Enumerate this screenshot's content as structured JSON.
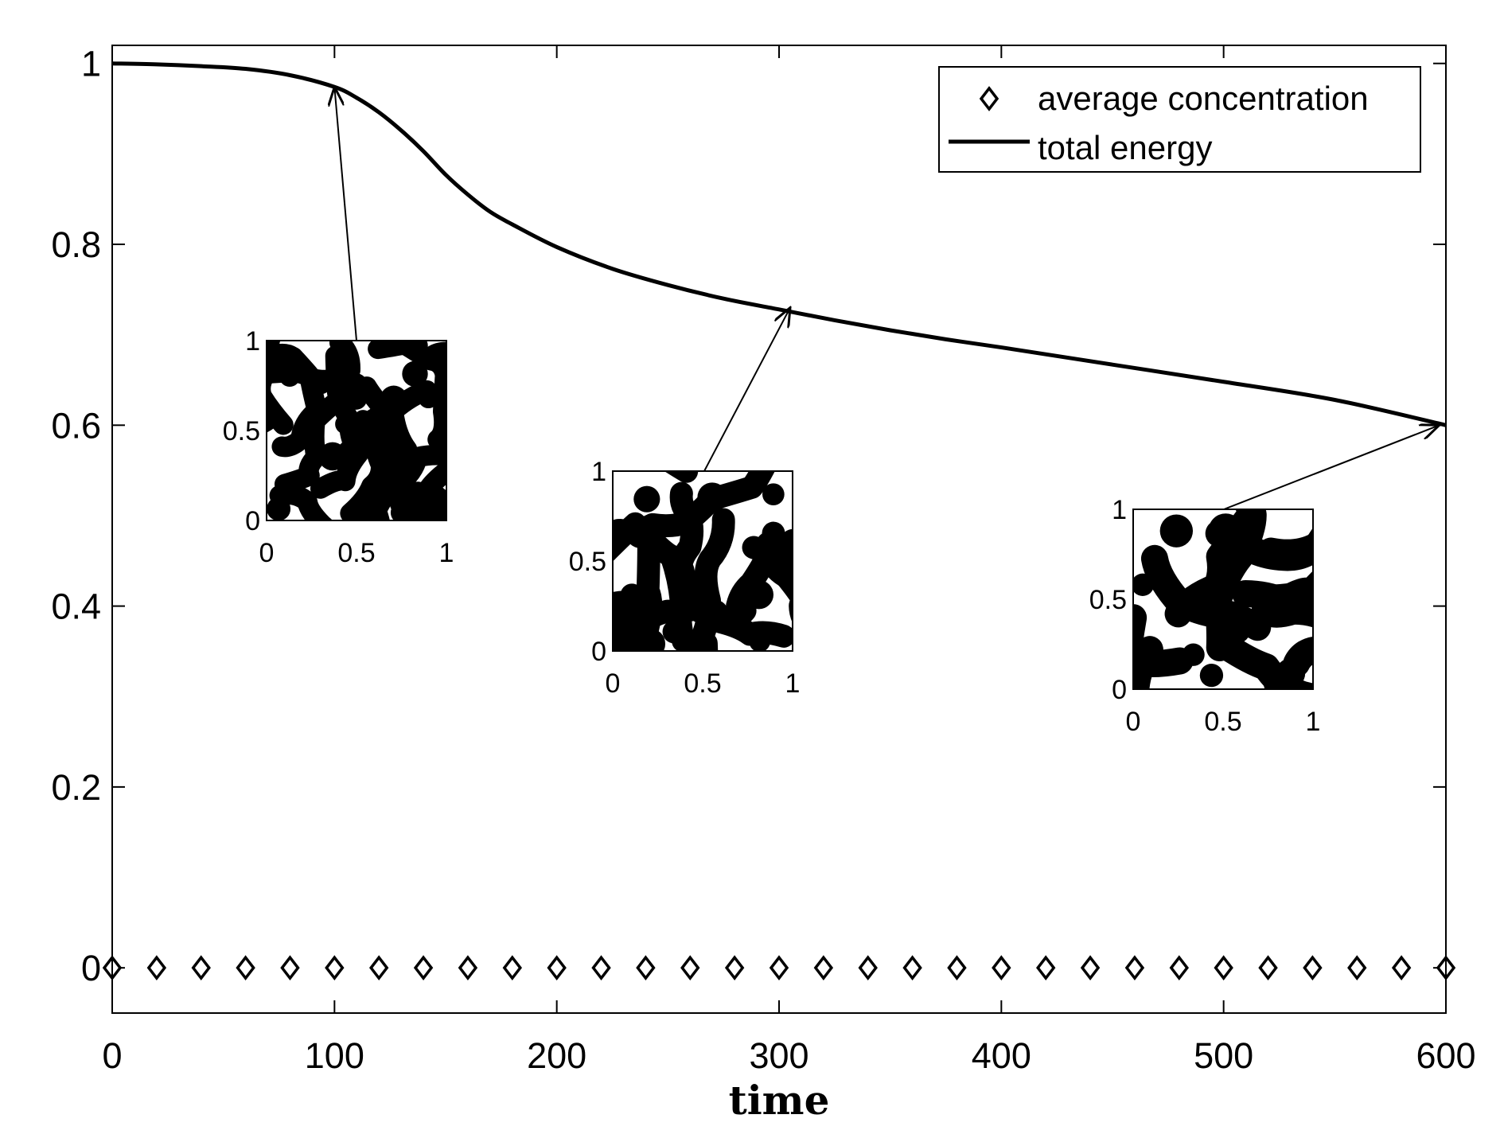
{
  "chart_data": {
    "type": "line",
    "title": "",
    "xlabel": "time",
    "ylabel": "",
    "xlim": [
      0,
      600
    ],
    "ylim": [
      -0.05,
      1.02
    ],
    "x_ticks": [
      0,
      100,
      200,
      300,
      400,
      500,
      600
    ],
    "x_tick_labels": [
      "0",
      "100",
      "200",
      "300",
      "400",
      "500",
      "600"
    ],
    "y_ticks": [
      0,
      0.2,
      0.4,
      0.6,
      0.8,
      1
    ],
    "y_tick_labels": [
      "0",
      "0.2",
      "0.4",
      "0.6",
      "0.8",
      "1"
    ],
    "grid": false,
    "legend_position": "top-right",
    "series": [
      {
        "name": "average concentration",
        "style": "diamond-markers",
        "x": [
          0,
          20,
          40,
          60,
          80,
          100,
          120,
          140,
          160,
          180,
          200,
          220,
          240,
          260,
          280,
          300,
          320,
          340,
          360,
          380,
          400,
          420,
          440,
          460,
          480,
          500,
          520,
          540,
          560,
          580,
          600
        ],
        "y": [
          0,
          0,
          0,
          0,
          0,
          0,
          0,
          0,
          0,
          0,
          0,
          0,
          0,
          0,
          0,
          0,
          0,
          0,
          0,
          0,
          0,
          0,
          0,
          0,
          0,
          0,
          0,
          0,
          0,
          0,
          0
        ]
      },
      {
        "name": "total energy",
        "style": "solid-line",
        "x": [
          0,
          20,
          40,
          60,
          80,
          100,
          110,
          120,
          130,
          140,
          150,
          160,
          170,
          180,
          200,
          225,
          250,
          275,
          300,
          325,
          350,
          375,
          400,
          450,
          500,
          550,
          600
        ],
        "y": [
          1.0,
          0.999,
          0.997,
          0.994,
          0.987,
          0.974,
          0.962,
          0.946,
          0.926,
          0.903,
          0.877,
          0.855,
          0.836,
          0.822,
          0.797,
          0.773,
          0.755,
          0.74,
          0.728,
          0.716,
          0.705,
          0.695,
          0.686,
          0.667,
          0.648,
          0.628,
          0.6
        ]
      }
    ],
    "insets": [
      {
        "points_to": {
          "x": 100,
          "y": 0.974
        },
        "x_tick_labels": [
          "0",
          "0.5",
          "1"
        ],
        "y_tick_labels": [
          "0",
          "0.5",
          "1"
        ]
      },
      {
        "points_to": {
          "x": 305,
          "y": 0.73
        },
        "x_tick_labels": [
          "0",
          "0.5",
          "1"
        ],
        "y_tick_labels": [
          "0",
          "0.5",
          "1"
        ]
      },
      {
        "points_to": {
          "x": 597,
          "y": 0.6
        },
        "x_tick_labels": [
          "0",
          "0.5",
          "1"
        ],
        "y_tick_labels": [
          "0",
          "0.5",
          "1"
        ]
      }
    ]
  }
}
